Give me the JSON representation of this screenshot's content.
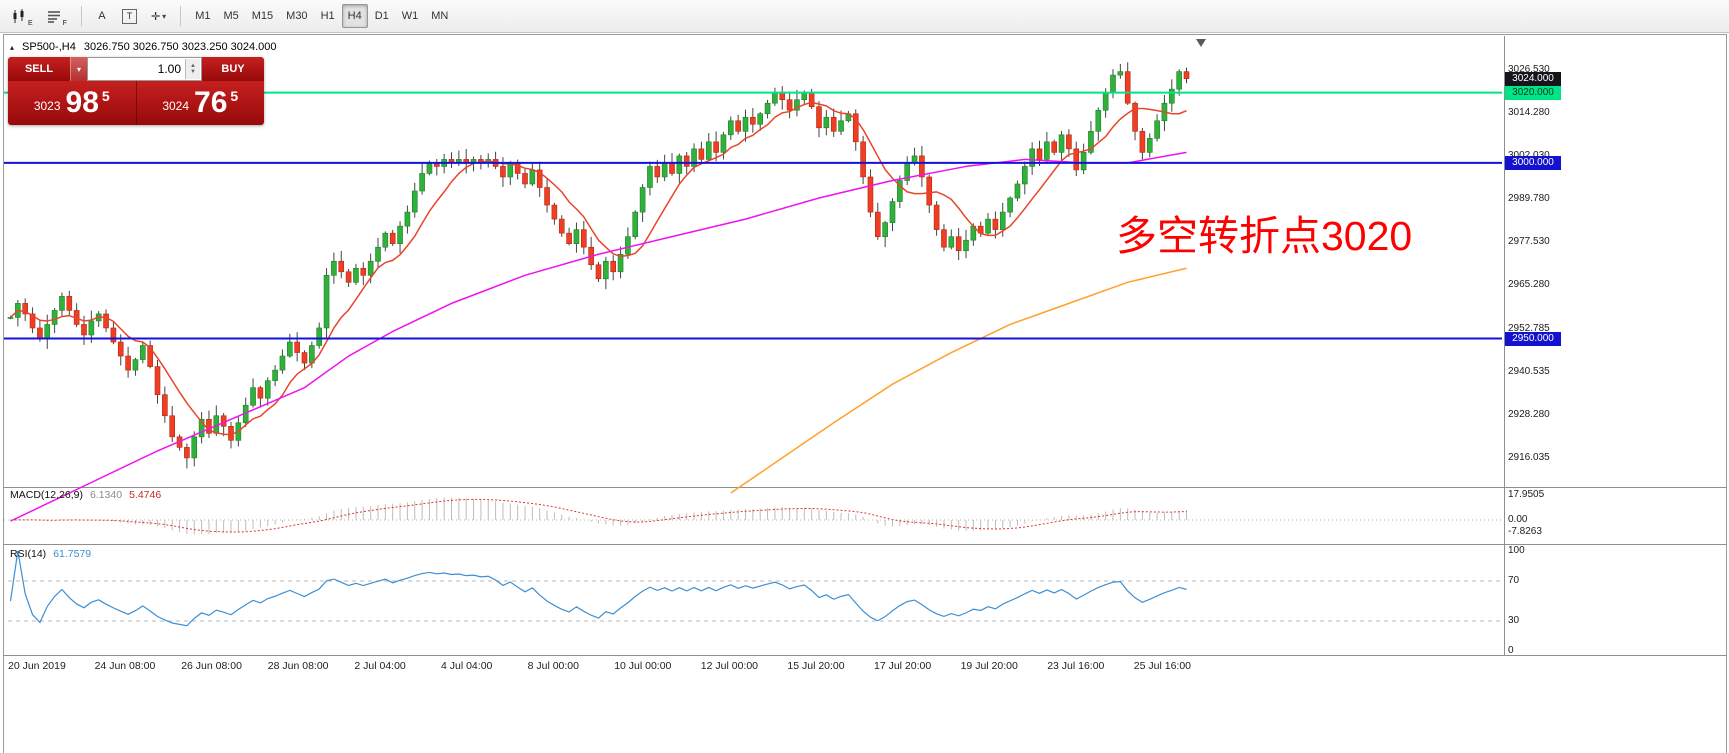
{
  "toolbar": {
    "timeframes": [
      "M1",
      "M5",
      "M15",
      "M30",
      "H1",
      "H4",
      "D1",
      "W1",
      "MN"
    ],
    "active_timeframe": "H4",
    "icon_subscripts": {
      "chart_icon": "E",
      "levels_icon": "F"
    },
    "text_tool_label": "A",
    "boxed_text_label": "T",
    "crosshair_glyph": "✛",
    "caret_glyph": "▾"
  },
  "chart_header": {
    "marker": "▴",
    "symbol": "SP500-,H4",
    "quotes": "3026.750 3026.750 3023.250 3024.000"
  },
  "trade_panel": {
    "sell_label": "SELL",
    "buy_label": "BUY",
    "volume": "1.00",
    "caret": "▾",
    "bid": {
      "prefix": "3023",
      "big": "98",
      "sup": "5"
    },
    "ask": {
      "prefix": "3024",
      "big": "76",
      "sup": "5"
    }
  },
  "annotation": {
    "text": "多空转折点3020"
  },
  "indicators": {
    "macd": {
      "label": "MACD(12,26,9)",
      "value1": "6.1340",
      "value2": "5.4746",
      "axis_labels": [
        {
          "v": 17.9505,
          "text": "17.9505"
        },
        {
          "v": 0,
          "text": "0.00"
        },
        {
          "v": -7.8263,
          "text": "-7.8263"
        }
      ]
    },
    "rsi": {
      "label": "RSI(14)",
      "value": "61.7579",
      "axis_labels": [
        {
          "v": 100,
          "text": "100"
        },
        {
          "v": 70,
          "text": "70"
        },
        {
          "v": 30,
          "text": "30"
        },
        {
          "v": 0,
          "text": "0"
        }
      ],
      "levels": [
        70,
        30
      ]
    }
  },
  "theme": {
    "trade_red": "#c62020",
    "trade_red_dark": "#970a0a",
    "up_color": "#2fb13c",
    "up_stroke": "#1d7f27",
    "down_color": "#ee3e23",
    "down_stroke": "#b42912",
    "wick_color": "#444444",
    "ma_fast_color": "#e8452a",
    "ma_mid_color": "#ef12ef",
    "ma_slow_color": "#ffa12c",
    "macd_hist": "#bdbdbd",
    "macd_signal": "#d23b31",
    "rsi_line": "#3d8fd4",
    "annotation_red": "#ff0000",
    "panel_border": "#9b9b9b"
  },
  "chart_data": {
    "type": "candlestick",
    "title": "SP500-,H4",
    "timeframe": "H4",
    "ohlc_last": {
      "open": 3026.75,
      "high": 3026.75,
      "low": 3023.25,
      "close": 3024.0
    },
    "ylim": [
      2908,
      3035
    ],
    "y_ticks": [
      {
        "p": 3026.53,
        "text": "3026.530"
      },
      {
        "p": 3014.28,
        "text": "3014.280"
      },
      {
        "p": 3002.03,
        "text": "3002.030"
      },
      {
        "p": 2989.78,
        "text": "2989.780"
      },
      {
        "p": 2977.53,
        "text": "2977.530"
      },
      {
        "p": 2965.28,
        "text": "2965.280"
      },
      {
        "p": 2952.785,
        "text": "2952.785"
      },
      {
        "p": 2940.535,
        "text": "2940.535"
      },
      {
        "p": 2928.28,
        "text": "2928.280"
      },
      {
        "p": 2916.035,
        "text": "2916.035"
      }
    ],
    "price_badges": [
      {
        "value": "3024.000",
        "price": 3024.0,
        "bg": "#15151b",
        "fg": "#ffffff"
      },
      {
        "value": "3020.000",
        "price": 3020.0,
        "bg": "#00e487",
        "fg": "#00391f"
      },
      {
        "value": "3000.000",
        "price": 3000.0,
        "bg": "#1212cf",
        "fg": "#ffffff"
      },
      {
        "value": "2950.000",
        "price": 2950.0,
        "bg": "#1212cf",
        "fg": "#ffffff"
      }
    ],
    "hlines": [
      {
        "price": 3020.0,
        "color": "#00e487",
        "width": 2
      },
      {
        "price": 3000.0,
        "color": "#1212dd",
        "width": 2
      },
      {
        "price": 2950.0,
        "color": "#1212dd",
        "width": 2
      }
    ],
    "closes": [
      2956,
      2960,
      2957,
      2953,
      2950,
      2954,
      2958,
      2962,
      2958,
      2954,
      2951,
      2955,
      2957,
      2953,
      2949,
      2945,
      2941,
      2944,
      2948,
      2942,
      2934,
      2928,
      2922,
      2919,
      2916,
      2922,
      2927,
      2923,
      2928,
      2925,
      2921,
      2926,
      2931,
      2936,
      2933,
      2938,
      2941,
      2945,
      2949,
      2946,
      2943,
      2948,
      2953,
      2968,
      2972,
      2969,
      2966,
      2970,
      2968,
      2972,
      2976,
      2980,
      2977,
      2982,
      2986,
      2992,
      2997,
      3000,
      2999,
      3001,
      3000,
      3001,
      3000,
      3001,
      3000,
      3001,
      2999,
      2996,
      3000,
      2997,
      2994,
      2998,
      2993,
      2988,
      2984,
      2980,
      2977,
      2981,
      2976,
      2971,
      2967,
      2972,
      2969,
      2974,
      2979,
      2986,
      2993,
      2999,
      2996,
      3000,
      2997,
      3002,
      2999,
      3004,
      3001,
      3006,
      3003,
      3008,
      3012,
      3009,
      3013,
      3011,
      3014,
      3017,
      3020,
      3018,
      3015,
      3018,
      3020,
      3016,
      3010,
      3013,
      3009,
      3012,
      3014,
      3006,
      2996,
      2986,
      2979,
      2983,
      2989,
      2995,
      3000,
      3002,
      2996,
      2988,
      2981,
      2976,
      2979,
      2975,
      2978,
      2982,
      2980,
      2984,
      2981,
      2986,
      2990,
      2994,
      2999,
      3004,
      3001,
      3006,
      3003,
      3008,
      3004,
      2998,
      3003,
      3009,
      3015,
      3020,
      3025,
      3026,
      3017,
      3009,
      3003,
      3007,
      3012,
      3017,
      3021,
      3026,
      3024
    ],
    "moving_averages": [
      {
        "name": "ma-fast",
        "type": "sma",
        "period": 8,
        "color": "#e8452a"
      },
      {
        "name": "ma-mid",
        "type": "points",
        "color": "#ef12ef",
        "points": [
          [
            0,
            2898
          ],
          [
            10,
            2908
          ],
          [
            20,
            2918
          ],
          [
            30,
            2927
          ],
          [
            40,
            2936
          ],
          [
            46,
            2945
          ],
          [
            52,
            2952
          ],
          [
            60,
            2960
          ],
          [
            70,
            2968
          ],
          [
            80,
            2974
          ],
          [
            90,
            2979
          ],
          [
            100,
            2984
          ],
          [
            110,
            2990
          ],
          [
            120,
            2995
          ],
          [
            130,
            2999
          ],
          [
            138,
            3001
          ],
          [
            146,
            3000
          ],
          [
            152,
            3000
          ],
          [
            160,
            3003
          ]
        ]
      },
      {
        "name": "ma-slow",
        "type": "points",
        "color": "#ffa12c",
        "points": [
          [
            98,
            2906
          ],
          [
            105,
            2916
          ],
          [
            112,
            2926
          ],
          [
            120,
            2937
          ],
          [
            128,
            2946
          ],
          [
            136,
            2954
          ],
          [
            144,
            2960
          ],
          [
            152,
            2966
          ],
          [
            160,
            2970
          ]
        ]
      }
    ],
    "x_labels": [
      "20 Jun 2019",
      "24 Jun 08:00",
      "26 Jun 08:00",
      "28 Jun 08:00",
      "2 Jul 04:00",
      "4 Jul 04:00",
      "8 Jul 00:00",
      "10 Jul 00:00",
      "12 Jul 00:00",
      "15 Jul 20:00",
      "17 Jul 20:00",
      "19 Jul 20:00",
      "23 Jul 16:00",
      "25 Jul 16:00"
    ],
    "macd_axis": {
      "top": 17.9505,
      "zero": 0.0,
      "bottom": -7.8263
    }
  }
}
